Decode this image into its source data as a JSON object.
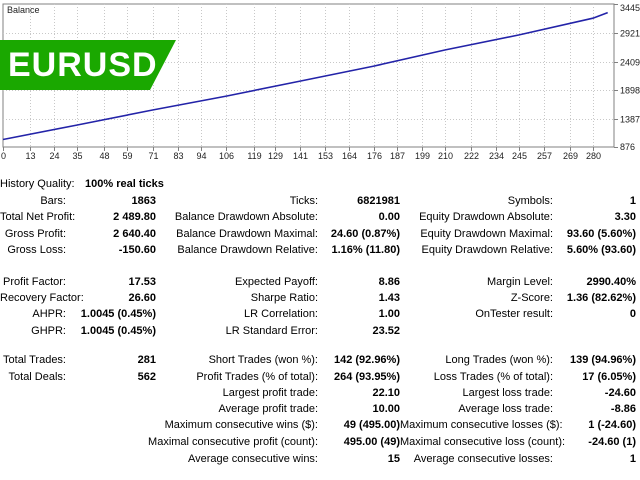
{
  "chart": {
    "title": "Balance",
    "symbol_badge": "EURUSD",
    "line_color": "#2323a8",
    "badge_color": "#1aa800",
    "y_ticks": [
      "3445",
      "2921",
      "2409",
      "1898",
      "1387",
      "876"
    ],
    "x_ticks": [
      "0",
      "13",
      "24",
      "35",
      "48",
      "59",
      "71",
      "83",
      "94",
      "106",
      "119",
      "129",
      "141",
      "153",
      "164",
      "176",
      "187",
      "199",
      "210",
      "222",
      "234",
      "245",
      "257",
      "269",
      "280"
    ]
  },
  "chart_data": {
    "type": "line",
    "title": "Balance",
    "xlabel": "",
    "ylabel": "",
    "x": [
      0,
      35,
      71,
      106,
      141,
      176,
      210,
      245,
      280,
      287
    ],
    "y": [
      1010,
      1270,
      1540,
      1790,
      2060,
      2330,
      2620,
      2890,
      3190,
      3290
    ],
    "ylim": [
      876,
      3445
    ],
    "xlim": [
      0,
      290
    ],
    "grid": true
  },
  "stats": {
    "history_quality": {
      "label": "History Quality:",
      "value": "100% real ticks"
    },
    "bars": {
      "label": "Bars:",
      "value": "1863"
    },
    "ticks": {
      "label": "Ticks:",
      "value": "6821981"
    },
    "symbols": {
      "label": "Symbols:",
      "value": "1"
    },
    "total_net_profit": {
      "label": "Total Net Profit:",
      "value": "2 489.80"
    },
    "balance_dd_abs": {
      "label": "Balance Drawdown Absolute:",
      "value": "0.00"
    },
    "equity_dd_abs": {
      "label": "Equity Drawdown Absolute:",
      "value": "3.30"
    },
    "gross_profit": {
      "label": "Gross Profit:",
      "value": "2 640.40"
    },
    "balance_dd_max": {
      "label": "Balance Drawdown Maximal:",
      "value": "24.60 (0.87%)"
    },
    "equity_dd_max": {
      "label": "Equity Drawdown Maximal:",
      "value": "93.60 (5.60%)"
    },
    "gross_loss": {
      "label": "Gross Loss:",
      "value": "-150.60"
    },
    "balance_dd_rel": {
      "label": "Balance Drawdown Relative:",
      "value": "1.16% (11.80)"
    },
    "equity_dd_rel": {
      "label": "Equity Drawdown Relative:",
      "value": "5.60% (93.60)"
    },
    "profit_factor": {
      "label": "Profit Factor:",
      "value": "17.53"
    },
    "expected_payoff": {
      "label": "Expected Payoff:",
      "value": "8.86"
    },
    "margin_level": {
      "label": "Margin Level:",
      "value": "2990.40%"
    },
    "recovery_factor": {
      "label": "Recovery Factor:",
      "value": "26.60"
    },
    "sharpe_ratio": {
      "label": "Sharpe Ratio:",
      "value": "1.43"
    },
    "z_score": {
      "label": "Z-Score:",
      "value": "1.36 (82.62%)"
    },
    "ahpr": {
      "label": "AHPR:",
      "value": "1.0045 (0.45%)"
    },
    "lr_correlation": {
      "label": "LR Correlation:",
      "value": "1.00"
    },
    "ontester_result": {
      "label": "OnTester result:",
      "value": "0"
    },
    "ghpr": {
      "label": "GHPR:",
      "value": "1.0045 (0.45%)"
    },
    "lr_std_error": {
      "label": "LR Standard Error:",
      "value": "23.52"
    },
    "total_trades": {
      "label": "Total Trades:",
      "value": "281"
    },
    "short_trades": {
      "label": "Short Trades (won %):",
      "value": "142 (92.96%)"
    },
    "long_trades": {
      "label": "Long Trades (won %):",
      "value": "139 (94.96%)"
    },
    "total_deals": {
      "label": "Total Deals:",
      "value": "562"
    },
    "profit_trades": {
      "label": "Profit Trades (% of total):",
      "value": "264 (93.95%)"
    },
    "loss_trades": {
      "label": "Loss Trades (% of total):",
      "value": "17 (6.05%)"
    },
    "largest_profit": {
      "label": "Largest profit trade:",
      "value": "22.10"
    },
    "largest_loss": {
      "label": "Largest loss trade:",
      "value": "-24.60"
    },
    "avg_profit": {
      "label": "Average profit trade:",
      "value": "10.00"
    },
    "avg_loss": {
      "label": "Average loss trade:",
      "value": "-8.86"
    },
    "max_consec_wins": {
      "label": "Maximum consecutive wins ($):",
      "value": "49 (495.00)"
    },
    "max_consec_losses": {
      "label": "Maximum consecutive losses ($):",
      "value": "1 (-24.60)"
    },
    "maximal_consec_profit": {
      "label": "Maximal consecutive profit (count):",
      "value": "495.00 (49)"
    },
    "maximal_consec_loss": {
      "label": "Maximal consecutive loss (count):",
      "value": "-24.60 (1)"
    },
    "avg_consec_wins": {
      "label": "Average consecutive wins:",
      "value": "15"
    },
    "avg_consec_losses": {
      "label": "Average consecutive losses:",
      "value": "1"
    }
  }
}
